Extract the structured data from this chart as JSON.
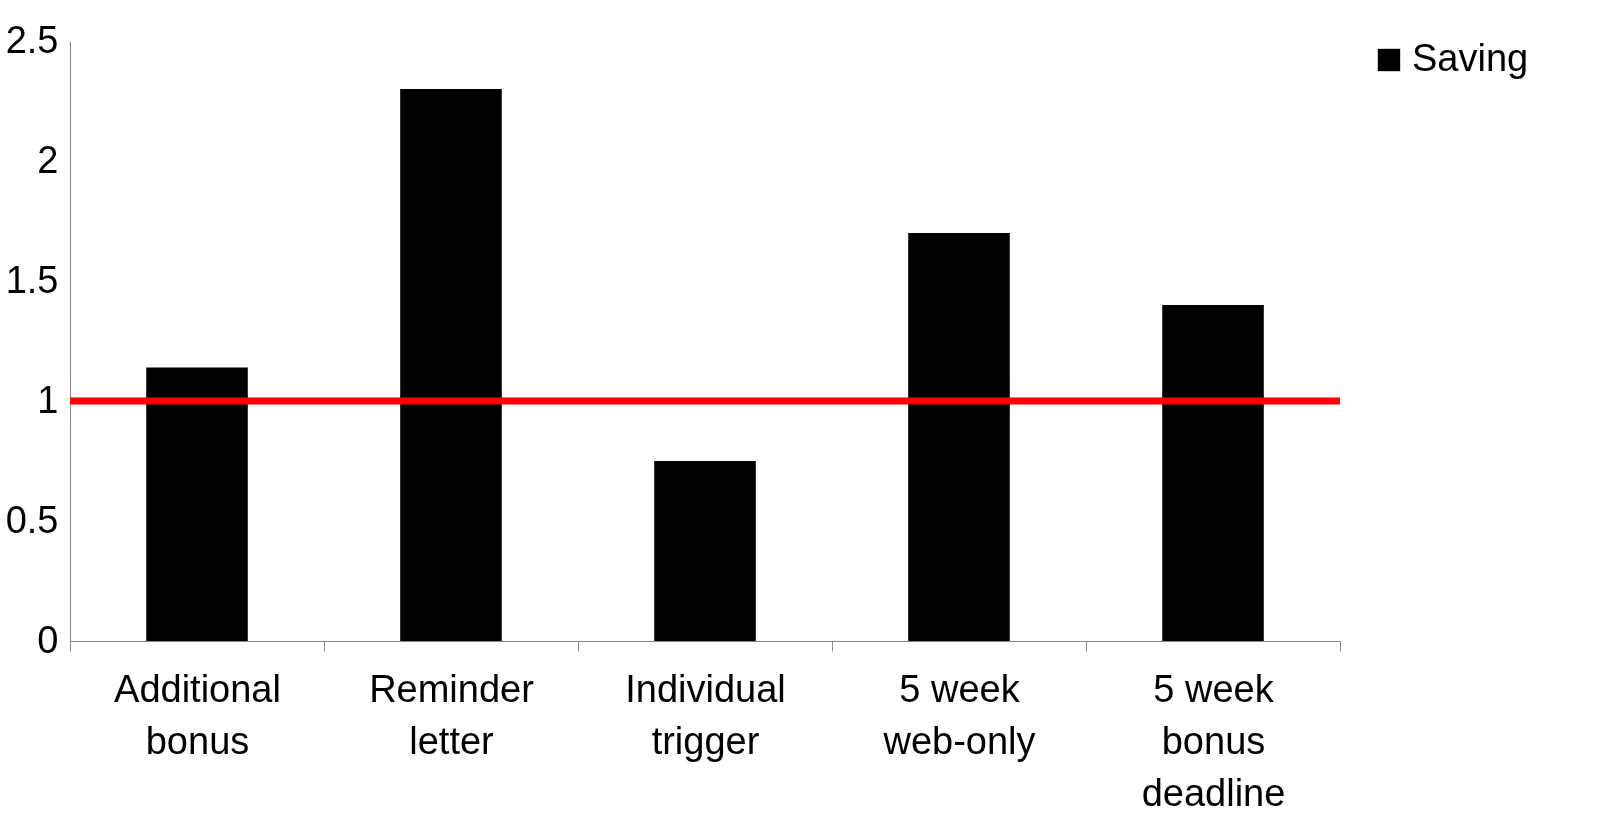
{
  "chart_data": {
    "type": "bar",
    "categories": [
      "Additional bonus",
      "Reminder letter",
      "Individual trigger",
      "5 week web-only",
      "5 week bonus deadline"
    ],
    "series": [
      {
        "name": "Saving",
        "color": "#000000",
        "values": [
          1.14,
          2.3,
          0.75,
          1.7,
          1.4
        ]
      }
    ],
    "ylim": [
      0,
      2.5
    ],
    "yticks": [
      0,
      0.5,
      1,
      1.5,
      2,
      2.5
    ],
    "grid": false,
    "legend": "top right",
    "ref_lines": [
      {
        "axis": "y",
        "value": 1,
        "color": "#ff0000"
      }
    ]
  }
}
